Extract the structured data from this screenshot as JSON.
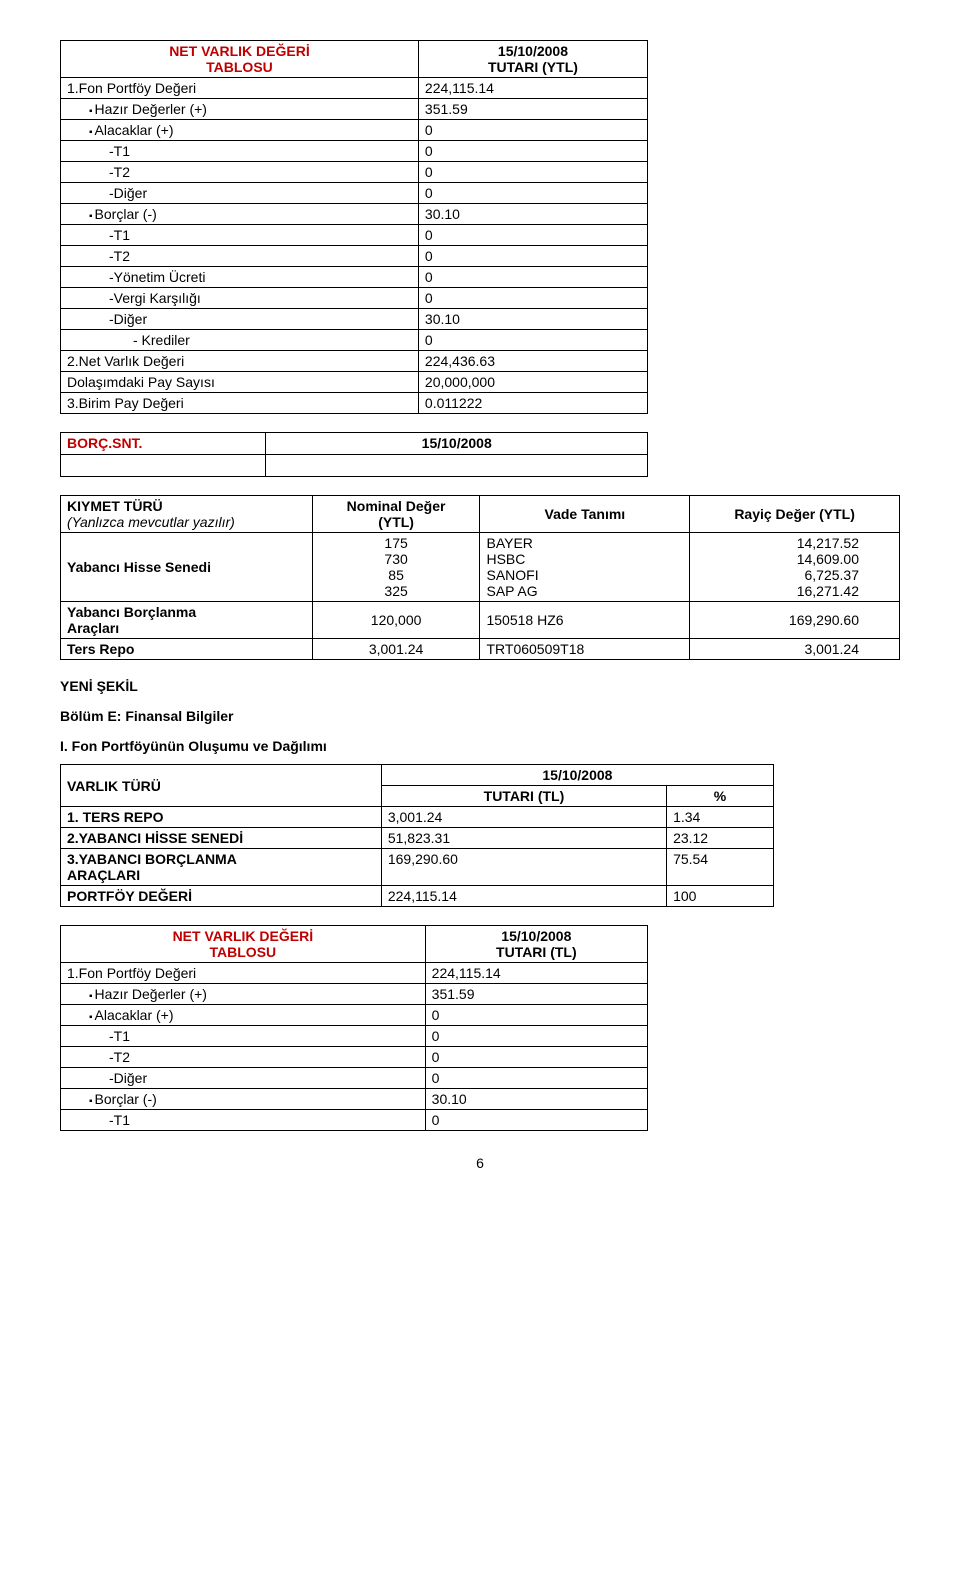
{
  "navTable1": {
    "col1Header": "NET VARLIK DEĞERİ\nTABLOSU",
    "col2Header": "15/10/2008\nTUTARI (YTL)",
    "rows": [
      {
        "label": "1.Fon Portföy Değeri",
        "value": "224,115.14",
        "indent": 0,
        "bullet": false
      },
      {
        "label": "Hazır Değerler (+)",
        "value": "351.59",
        "indent": 1,
        "bullet": true
      },
      {
        "label": "Alacaklar (+)",
        "value": "0",
        "indent": 1,
        "bullet": true
      },
      {
        "label": "-T1",
        "value": "0",
        "indent": 2,
        "bullet": false
      },
      {
        "label": "-T2",
        "value": "0",
        "indent": 2,
        "bullet": false
      },
      {
        "label": "-Diğer",
        "value": "0",
        "indent": 2,
        "bullet": false
      },
      {
        "label": "Borçlar (-)",
        "value": "30.10",
        "indent": 1,
        "bullet": true
      },
      {
        "label": "-T1",
        "value": "0",
        "indent": 2,
        "bullet": false
      },
      {
        "label": "-T2",
        "value": "0",
        "indent": 2,
        "bullet": false
      },
      {
        "label": "-Yönetim Ücreti",
        "value": "0",
        "indent": 2,
        "bullet": false
      },
      {
        "label": "-Vergi Karşılığı",
        "value": "0",
        "indent": 2,
        "bullet": false
      },
      {
        "label": "-Diğer",
        "value": "30.10",
        "indent": 2,
        "bullet": false
      },
      {
        "label": "- Krediler",
        "value": "0",
        "indent": 3,
        "bullet": false
      },
      {
        "label": "2.Net Varlık Değeri",
        "value": "224,436.63",
        "indent": 0,
        "bullet": false
      },
      {
        "label": "Dolaşımdaki Pay Sayısı",
        "value": "20,000,000",
        "indent": 0,
        "bullet": false
      },
      {
        "label": "3.Birim Pay Değeri",
        "value": "0.011222",
        "indent": 0,
        "bullet": false
      }
    ]
  },
  "borc": {
    "label": "BORÇ.SNT.",
    "date": "15/10/2008"
  },
  "kiymet": {
    "headers": [
      "KIYMET TÜRÜ\n(Yanlızca mevcutlar yazılır)",
      "Nominal Değer\n(YTL)",
      "Vade Tanımı",
      "Rayiç Değer (YTL)"
    ],
    "rows": [
      {
        "label": "Yabancı Hisse Senedi",
        "nominal": "175\n730\n85\n325",
        "vade": "BAYER\nHSBC\nSANOFI\nSAP AG",
        "rayic": "14,217.52\n14,609.00\n6,725.37\n16,271.42"
      },
      {
        "label": "Yabancı Borçlanma\nAraçları",
        "nominal": "120,000",
        "vade": "150518 HZ6",
        "rayic": "169,290.60"
      },
      {
        "label": "Ters Repo",
        "nominal": "3,001.24",
        "vade": "TRT060509T18",
        "rayic": "3,001.24"
      }
    ]
  },
  "yeniSekil": "YENİ ŞEKİL",
  "bolumE": "Bölüm E: Finansal Bilgiler",
  "sectionI": "I. Fon Portföyünün Oluşumu ve Dağılımı",
  "varlik": {
    "header1": "VARLIK TÜRÜ",
    "date": "15/10/2008",
    "sub1": "TUTARI (TL)",
    "sub2": "%",
    "rows": [
      {
        "label": "1. TERS REPO",
        "v1": "3,001.24",
        "v2": "1.34"
      },
      {
        "label": "2.YABANCI HİSSE SENEDİ",
        "v1": "51,823.31",
        "v2": "23.12"
      },
      {
        "label": "3.YABANCI BORÇLANMA\nARAÇLARI",
        "v1": "169,290.60",
        "v2": "75.54"
      },
      {
        "label": "PORTFÖY DEĞERİ",
        "v1": "224,115.14",
        "v2": "100"
      }
    ]
  },
  "navTable2": {
    "col1Header": "NET VARLIK DEĞERİ\nTABLOSU",
    "col2Header": "15/10/2008\nTUTARI (TL)",
    "rows": [
      {
        "label": "1.Fon Portföy Değeri",
        "value": "224,115.14",
        "indent": 0,
        "bullet": false
      },
      {
        "label": "Hazır Değerler (+)",
        "value": "351.59",
        "indent": 1,
        "bullet": true
      },
      {
        "label": "Alacaklar (+)",
        "value": "0",
        "indent": 1,
        "bullet": true
      },
      {
        "label": "-T1",
        "value": "0",
        "indent": 2,
        "bullet": false
      },
      {
        "label": "-T2",
        "value": "0",
        "indent": 2,
        "bullet": false
      },
      {
        "label": "-Diğer",
        "value": "0",
        "indent": 2,
        "bullet": false
      },
      {
        "label": "Borçlar (-)",
        "value": "30.10",
        "indent": 1,
        "bullet": true
      },
      {
        "label": "-T1",
        "value": "0",
        "indent": 2,
        "bullet": false
      }
    ]
  },
  "pageNum": "6"
}
